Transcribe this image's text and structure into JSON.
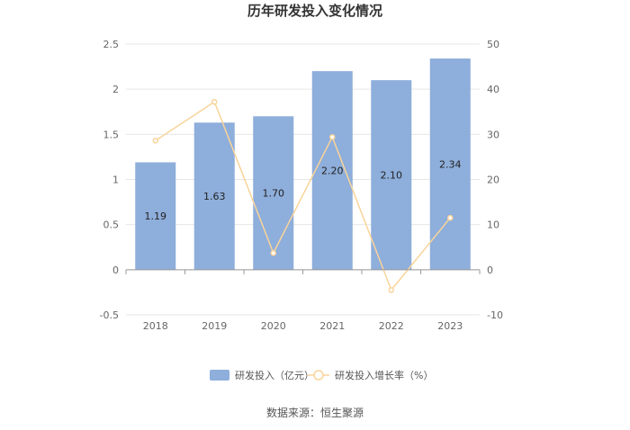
{
  "chart_data": {
    "type": "bar",
    "title": "历年研发投入变化情况",
    "categories": [
      "2018",
      "2019",
      "2020",
      "2021",
      "2022",
      "2023"
    ],
    "series": [
      {
        "name": "研发投入（亿元）",
        "type": "bar",
        "axis": "left",
        "values": [
          1.19,
          1.63,
          1.7,
          2.2,
          2.1,
          2.34
        ],
        "labels": [
          "1.19",
          "1.63",
          "1.70",
          "2.20",
          "2.10",
          "2.34"
        ],
        "color": "#8eaedb"
      },
      {
        "name": "研发投入增长率（%）",
        "type": "line",
        "axis": "right",
        "values": [
          28.6,
          37.2,
          3.7,
          29.4,
          -4.5,
          11.5
        ],
        "color": "#f8d49a"
      }
    ],
    "y_left": {
      "min": -0.5,
      "max": 2.5,
      "ticks": [
        "-0.5",
        "0",
        "0.5",
        "1",
        "1.5",
        "2",
        "2.5"
      ]
    },
    "y_right": {
      "min": -10,
      "max": 50,
      "ticks": [
        "-10",
        "0",
        "10",
        "20",
        "30",
        "40",
        "50"
      ]
    },
    "grid": true,
    "legend_position": "bottom"
  },
  "source_text": "数据来源：恒生聚源"
}
